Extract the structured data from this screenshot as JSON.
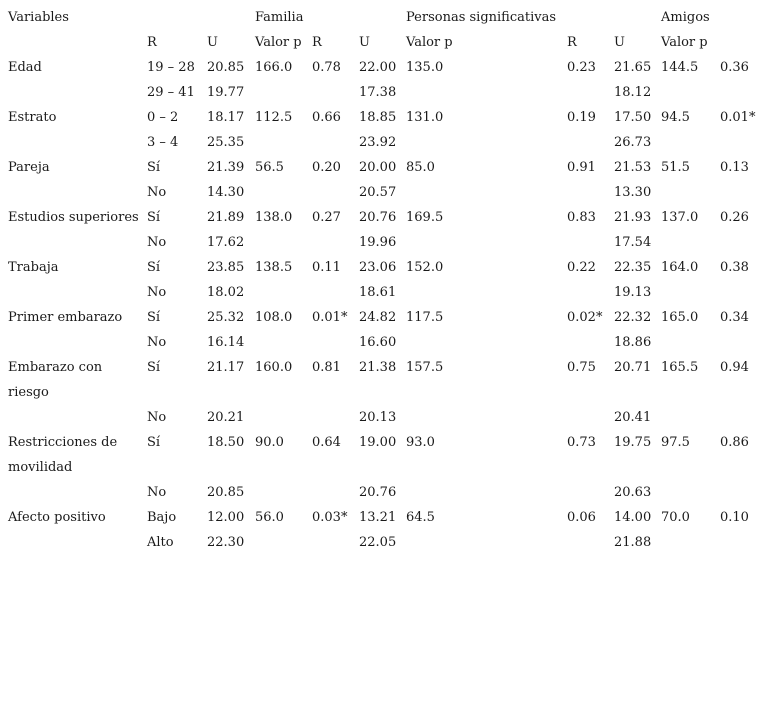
{
  "headers": {
    "variables": "Variables",
    "familia": "Familia",
    "personas": "Personas significativas",
    "amigos": "Amigos"
  },
  "subheaders": {
    "familia": [
      "R",
      "U",
      "Valor p"
    ],
    "personas": [
      "R",
      "U",
      "Valor p"
    ],
    "amigos": [
      "R",
      "U",
      "Valor p"
    ]
  },
  "rows": [
    {
      "variable": "Edad",
      "cat": "19 – 28",
      "fam_u": "20.85",
      "fam_vp": "166.0",
      "fam_p": "0.78",
      "per_u": "22.00",
      "per_vp": "135.0",
      "per_p": "0.23",
      "ami_u": "21.65",
      "ami_vp": "144.5",
      "ami_p": "0.36"
    },
    {
      "variable": "",
      "cat": "29 – 41",
      "fam_u": "19.77",
      "fam_vp": "",
      "fam_p": "",
      "per_u": "17.38",
      "per_vp": "",
      "per_p": "",
      "ami_u": "18.12",
      "ami_vp": "",
      "ami_p": ""
    },
    {
      "variable": "Estrato",
      "cat": "0 – 2",
      "fam_u": "18.17",
      "fam_vp": "112.5",
      "fam_p": "0.66",
      "per_u": "18.85",
      "per_vp": "131.0",
      "per_p": "0.19",
      "ami_u": "17.50",
      "ami_vp": "94.5",
      "ami_p": "0.01*"
    },
    {
      "variable": "",
      "cat": "3 – 4",
      "fam_u": "25.35",
      "fam_vp": "",
      "fam_p": "",
      "per_u": "23.92",
      "per_vp": "",
      "per_p": "",
      "ami_u": "26.73",
      "ami_vp": "",
      "ami_p": ""
    },
    {
      "variable": "Pareja",
      "cat": "Sí",
      "fam_u": "21.39",
      "fam_vp": "56.5",
      "fam_p": "0.20",
      "per_u": "20.00",
      "per_vp": "85.0",
      "per_p": "0.91",
      "ami_u": "21.53",
      "ami_vp": "51.5",
      "ami_p": "0.13"
    },
    {
      "variable": "",
      "cat": "No",
      "fam_u": "14.30",
      "fam_vp": "",
      "fam_p": "",
      "per_u": "20.57",
      "per_vp": "",
      "per_p": "",
      "ami_u": "13.30",
      "ami_vp": "",
      "ami_p": ""
    },
    {
      "variable": "Estudios superiores",
      "cat": "Sí",
      "fam_u": "21.89",
      "fam_vp": "138.0",
      "fam_p": "0.27",
      "per_u": "20.76",
      "per_vp": "169.5",
      "per_p": "0.83",
      "ami_u": "21.93",
      "ami_vp": "137.0",
      "ami_p": "0.26"
    },
    {
      "variable": "",
      "cat": "No",
      "fam_u": "17.62",
      "fam_vp": "",
      "fam_p": "",
      "per_u": "19.96",
      "per_vp": "",
      "per_p": "",
      "ami_u": "17.54",
      "ami_vp": "",
      "ami_p": ""
    },
    {
      "variable": "Trabaja",
      "cat": "Sí",
      "fam_u": "23.85",
      "fam_vp": "138.5",
      "fam_p": "0.11",
      "per_u": "23.06",
      "per_vp": "152.0",
      "per_p": "0.22",
      "ami_u": "22.35",
      "ami_vp": "164.0",
      "ami_p": "0.38"
    },
    {
      "variable": "",
      "cat": "No",
      "fam_u": "18.02",
      "fam_vp": "",
      "fam_p": "",
      "per_u": "18.61",
      "per_vp": "",
      "per_p": "",
      "ami_u": "19.13",
      "ami_vp": "",
      "ami_p": ""
    },
    {
      "variable": "Primer embarazo",
      "cat": "Sí",
      "fam_u": "25.32",
      "fam_vp": "108.0",
      "fam_p": "0.01*",
      "per_u": "24.82",
      "per_vp": "117.5",
      "per_p": "0.02*",
      "ami_u": "22.32",
      "ami_vp": "165.0",
      "ami_p": "0.34"
    },
    {
      "variable": "",
      "cat": "No",
      "fam_u": "16.14",
      "fam_vp": "",
      "fam_p": "",
      "per_u": "16.60",
      "per_vp": "",
      "per_p": "",
      "ami_u": "18.86",
      "ami_vp": "",
      "ami_p": ""
    },
    {
      "variable": "Embarazo con riesgo",
      "cat": "Sí",
      "fam_u": "21.17",
      "fam_vp": "160.0",
      "fam_p": "0.81",
      "per_u": "21.38",
      "per_vp": "157.5",
      "per_p": "0.75",
      "ami_u": "20.71",
      "ami_vp": "165.5",
      "ami_p": "0.94"
    },
    {
      "variable": "",
      "cat": "No",
      "fam_u": "20.21",
      "fam_vp": "",
      "fam_p": "",
      "per_u": "20.13",
      "per_vp": "",
      "per_p": "",
      "ami_u": "20.41",
      "ami_vp": "",
      "ami_p": ""
    },
    {
      "variable": "Restricciones de movilidad",
      "cat": "Sí",
      "fam_u": "18.50",
      "fam_vp": "90.0",
      "fam_p": "0.64",
      "per_u": "19.00",
      "per_vp": "93.0",
      "per_p": "0.73",
      "ami_u": "19.75",
      "ami_vp": "97.5",
      "ami_p": "0.86"
    },
    {
      "variable": "",
      "cat": "No",
      "fam_u": "20.85",
      "fam_vp": "",
      "fam_p": "",
      "per_u": "20.76",
      "per_vp": "",
      "per_p": "",
      "ami_u": "20.63",
      "ami_vp": "",
      "ami_p": ""
    },
    {
      "variable": "Afecto positivo",
      "cat": "Bajo",
      "fam_u": "12.00",
      "fam_vp": "56.0",
      "fam_p": "0.03*",
      "per_u": "13.21",
      "per_vp": "64.5",
      "per_p": "0.06",
      "ami_u": "14.00",
      "ami_vp": "70.0",
      "ami_p": "0.10"
    },
    {
      "variable": "",
      "cat": "Alto",
      "fam_u": "22.30",
      "fam_vp": "",
      "fam_p": "",
      "per_u": "22.05",
      "per_vp": "",
      "per_p": "",
      "ami_u": "21.88",
      "ami_vp": "",
      "ami_p": ""
    }
  ]
}
